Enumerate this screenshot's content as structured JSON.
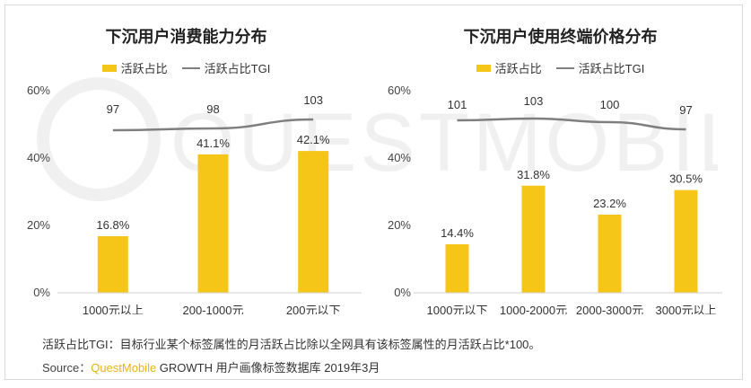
{
  "colors": {
    "bar": "#f5c518",
    "line": "#7f7f7f",
    "watermark": "#eeeeee"
  },
  "watermark_text": "QUESTMOBILE",
  "chart_data": [
    {
      "type": "bar",
      "title": "下沉用户消费能力分布",
      "categories": [
        "1000元以上",
        "200-1000元",
        "200元以下"
      ],
      "series": [
        {
          "name": "活跃占比",
          "type": "bar",
          "values": [
            16.8,
            41.1,
            42.1
          ],
          "labels": [
            "16.8%",
            "41.1%",
            "42.1%"
          ]
        },
        {
          "name": "活跃占比TGI",
          "type": "line",
          "values": [
            97,
            98,
            103
          ],
          "labels": [
            "97",
            "98",
            "103"
          ]
        }
      ],
      "yticks": [
        "0%",
        "20%",
        "40%",
        "60%"
      ],
      "ylim": [
        0,
        60
      ],
      "legend": "top-center",
      "grid": false
    },
    {
      "type": "bar",
      "title": "下沉用户使用终端价格分布",
      "categories": [
        "1000元以下",
        "1000-2000元",
        "2000-3000元",
        "3000元以上"
      ],
      "series": [
        {
          "name": "活跃占比",
          "type": "bar",
          "values": [
            14.4,
            31.8,
            23.2,
            30.5
          ],
          "labels": [
            "14.4%",
            "31.8%",
            "23.2%",
            "30.5%"
          ]
        },
        {
          "name": "活跃占比TGI",
          "type": "line",
          "values": [
            101,
            103,
            100,
            97
          ],
          "labels": [
            "101",
            "103",
            "100",
            "97"
          ]
        }
      ],
      "yticks": [
        "0%",
        "20%",
        "40%",
        "60%"
      ],
      "ylim": [
        0,
        60
      ],
      "legend": "top-center",
      "grid": false
    }
  ],
  "footer": {
    "note": "活跃占比TGI：目标行业某个标签属性的月活跃占比除以全网具有该标签属性的月活跃占比*100。",
    "source_label": "Source：",
    "source_brand": "QuestMobile",
    "source_rest": " GROWTH 用户画像标签数据库 2019年3月"
  }
}
